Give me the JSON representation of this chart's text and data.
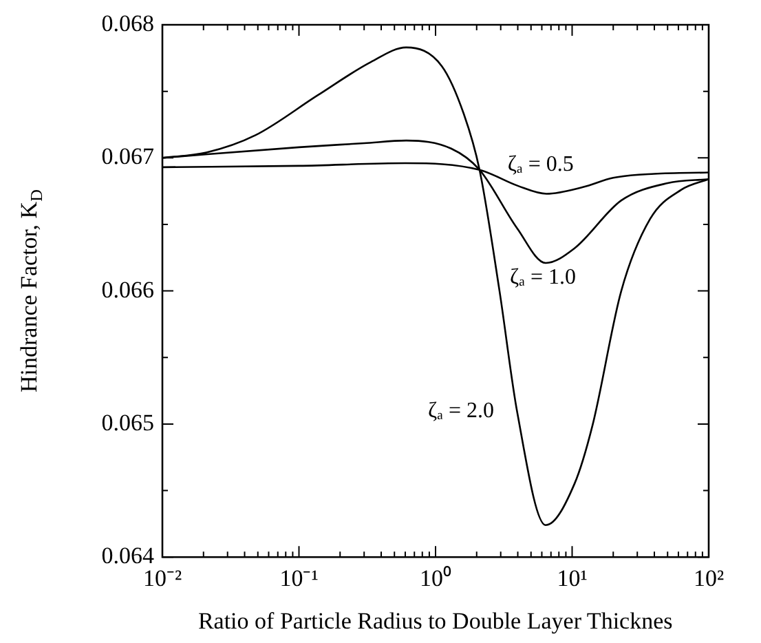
{
  "chart_data": {
    "type": "line",
    "xlabel": "Ratio of Particle Radius to Double Layer Thicknes",
    "ylabel": "Hindrance Factor, K$_{D}$",
    "log": "x",
    "grid": false,
    "legend": false,
    "marker": "none",
    "line_style": "solid",
    "xlim": [
      0.01,
      100
    ],
    "ylim": [
      0.064,
      0.068
    ],
    "xticks": [
      {
        "value": 0.01,
        "label": "10⁻²"
      },
      {
        "value": 0.02,
        "label": null
      },
      {
        "value": 0.03,
        "label": null
      },
      {
        "value": 0.04,
        "label": null
      },
      {
        "value": 0.05,
        "label": null
      },
      {
        "value": 0.06,
        "label": null
      },
      {
        "value": 0.07,
        "label": null
      },
      {
        "value": 0.08,
        "label": null
      },
      {
        "value": 0.09,
        "label": null
      },
      {
        "value": 0.1,
        "label": "10⁻¹"
      },
      {
        "value": 0.2,
        "label": null
      },
      {
        "value": 0.3,
        "label": null
      },
      {
        "value": 0.4,
        "label": null
      },
      {
        "value": 0.5,
        "label": null
      },
      {
        "value": 0.6,
        "label": null
      },
      {
        "value": 0.7,
        "label": null
      },
      {
        "value": 0.8,
        "label": null
      },
      {
        "value": 0.9,
        "label": null
      },
      {
        "value": 1,
        "label": "10⁰"
      },
      {
        "value": 2,
        "label": null
      },
      {
        "value": 3,
        "label": null
      },
      {
        "value": 4,
        "label": null
      },
      {
        "value": 5,
        "label": null
      },
      {
        "value": 6,
        "label": null
      },
      {
        "value": 7,
        "label": null
      },
      {
        "value": 8,
        "label": null
      },
      {
        "value": 9,
        "label": null
      },
      {
        "value": 10,
        "label": "10¹"
      },
      {
        "value": 20,
        "label": null
      },
      {
        "value": 30,
        "label": null
      },
      {
        "value": 40,
        "label": null
      },
      {
        "value": 50,
        "label": null
      },
      {
        "value": 60,
        "label": null
      },
      {
        "value": 70,
        "label": null
      },
      {
        "value": 80,
        "label": null
      },
      {
        "value": 90,
        "label": null
      },
      {
        "value": 100,
        "label": "10²"
      }
    ],
    "yticks": [
      0.064,
      {
        "value": 0.0645,
        "label": null
      },
      0.065,
      {
        "value": 0.0655,
        "label": null
      },
      0.066,
      {
        "value": 0.0665,
        "label": null
      },
      0.067,
      {
        "value": 0.0675,
        "label": null
      },
      0.068
    ],
    "series": [
      {
        "name": "ζₐ = 0.5",
        "color": "#000000",
        "x": [
          0.01,
          0.1,
          0.6,
          2.1,
          4,
          6.5,
          12,
          20,
          40,
          100
        ],
        "values": [
          0.06693,
          0.06694,
          0.06696,
          0.06691,
          0.06679,
          0.06673,
          0.06678,
          0.06685,
          0.06688,
          0.06689
        ]
      },
      {
        "name": "ζₐ = 1.0",
        "color": "#000000",
        "x": [
          0.01,
          0.1,
          0.3,
          0.61,
          1.3,
          2.1,
          3.96,
          6.4,
          10.4,
          22.9,
          50,
          100
        ],
        "values": [
          0.067,
          0.06708,
          0.06711,
          0.06713,
          0.06707,
          0.06691,
          0.06647,
          0.06621,
          0.06632,
          0.06668,
          0.06681,
          0.06684
        ]
      },
      {
        "name": "ζₐ = 2.0",
        "color": "#000000",
        "x": [
          0.01,
          0.021,
          0.048,
          0.137,
          0.336,
          0.61,
          1.11,
          1.61,
          2.1,
          2.94,
          3.96,
          6.4,
          10.4,
          14.1,
          22.9,
          37.2,
          63,
          100
        ],
        "values": [
          0.067,
          0.06704,
          0.06717,
          0.06747,
          0.06772,
          0.06783,
          0.06769,
          0.06733,
          0.06691,
          0.066,
          0.06509,
          0.06424,
          0.06455,
          0.06499,
          0.066,
          0.06654,
          0.06676,
          0.06684
        ]
      }
    ]
  }
}
